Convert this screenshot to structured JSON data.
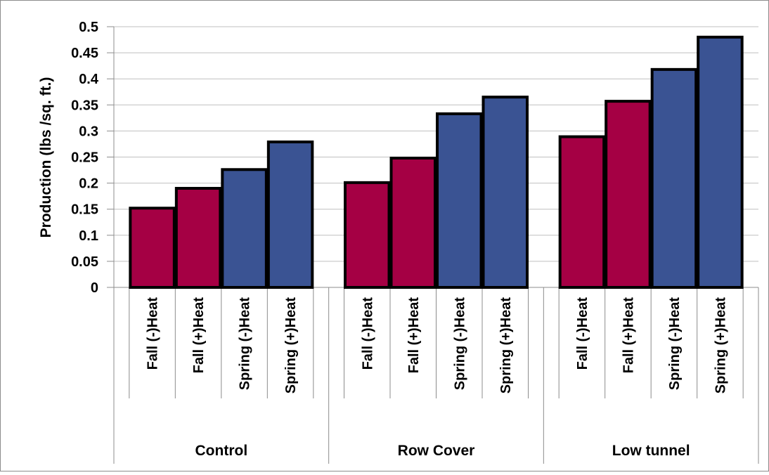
{
  "chart_data": {
    "type": "bar",
    "title": "",
    "xlabel": "",
    "ylabel": "Production (lbs /sq. ft.)",
    "ylim": [
      0,
      0.5
    ],
    "yticks": [
      "0",
      "0.05",
      "0.1",
      "0.15",
      "0.2",
      "0.25",
      "0.3",
      "0.35",
      "0.4",
      "0.45",
      "0.5"
    ],
    "grid": true,
    "legend": "none",
    "colors": {
      "fall": "#A50044",
      "spring": "#3A5393",
      "border": "#000000",
      "grid": "#BFBFBF"
    },
    "groups": [
      {
        "name": "Control",
        "bars": [
          {
            "label": "Fall (-)Heat",
            "value": 0.152,
            "season": "fall"
          },
          {
            "label": "Fall (+)Heat",
            "value": 0.19,
            "season": "fall"
          },
          {
            "label": "Spring (-)Heat",
            "value": 0.226,
            "season": "spring"
          },
          {
            "label": "Spring (+)Heat",
            "value": 0.279,
            "season": "spring"
          }
        ]
      },
      {
        "name": "Row Cover",
        "bars": [
          {
            "label": "Fall (-)Heat",
            "value": 0.201,
            "season": "fall"
          },
          {
            "label": "Fall (+)Heat",
            "value": 0.248,
            "season": "fall"
          },
          {
            "label": "Spring (-)Heat",
            "value": 0.333,
            "season": "spring"
          },
          {
            "label": "Spring (+)Heat",
            "value": 0.365,
            "season": "spring"
          }
        ]
      },
      {
        "name": "Low tunnel",
        "bars": [
          {
            "label": "Fall (-)Heat",
            "value": 0.289,
            "season": "fall"
          },
          {
            "label": "Fall (+)Heat",
            "value": 0.357,
            "season": "fall"
          },
          {
            "label": "Spring (-)Heat",
            "value": 0.418,
            "season": "spring"
          },
          {
            "label": "Spring (+)Heat",
            "value": 0.48,
            "season": "spring"
          }
        ]
      }
    ]
  }
}
